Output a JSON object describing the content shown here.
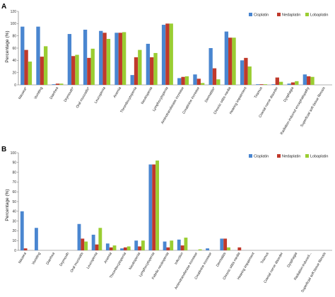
{
  "chart_data": [
    {
      "type": "bar",
      "panel_label": "A",
      "ylabel": "Percentage (%)",
      "ylim": [
        0,
        120
      ],
      "yticks": [
        0,
        20,
        40,
        60,
        80,
        100,
        120
      ],
      "grid": false,
      "legend_position": "top-right",
      "categories": [
        "Nausea*",
        "Vomiting",
        "Diarrhea",
        "Drymouth*",
        "Oral mucositis*",
        "Leucopenia",
        "Anemia",
        "Thrombocytopenia",
        "Neutropenia",
        "Lymphocytopenia",
        "Aminotransferase increase",
        "Creatinine increase",
        "Dermatitis*",
        "Chronic otitis media",
        "Hearing impairment",
        "Trismus",
        "Cranial nerve disorder",
        "Dysphagia",
        "Radiation-induced encephalopathy",
        "Superficial soft tissue fibrosis"
      ],
      "series": [
        {
          "name": "Cisplatin",
          "color": "#4a86d0",
          "values": [
            95,
            95,
            1,
            83,
            90,
            88,
            85,
            16,
            67,
            98,
            11,
            17,
            60,
            87,
            40,
            1,
            1,
            2,
            17,
            0
          ]
        },
        {
          "name": "Nedaplatin",
          "color": "#c0392b",
          "values": [
            57,
            46,
            2,
            47,
            44,
            85,
            85,
            45,
            45,
            100,
            13,
            10,
            27,
            77,
            44,
            1,
            12,
            4,
            14,
            0
          ]
        },
        {
          "name": "Lobaplatin",
          "color": "#9acd32",
          "values": [
            38,
            63,
            2,
            49,
            59,
            75,
            86,
            57,
            52,
            100,
            14,
            3,
            9,
            77,
            30,
            1,
            5,
            6,
            13,
            0
          ]
        }
      ]
    },
    {
      "type": "bar",
      "panel_label": "B",
      "ylabel": "Percentage (%)",
      "ylim": [
        0,
        100
      ],
      "yticks": [
        0,
        10,
        20,
        30,
        40,
        50,
        60,
        70,
        80,
        90,
        100
      ],
      "grid": false,
      "legend_position": "top-right",
      "categories": [
        "Nausea",
        "Vomiting",
        "Diarrhea",
        "Drymouth",
        "Oral mucositis",
        "Leucopenia",
        "Anemia",
        "Thrombocytopenia",
        "Neutropenia",
        "Lymphocytopenia",
        "Febrile neutropenia",
        "Infection",
        "Aminotransferase increase",
        "Creatinine increase",
        "Dermatitis",
        "Chronic otitis media",
        "Hearing impairment",
        "Trismus",
        "Cranial nerve disorder",
        "Dysphagia",
        "Radiation-induced...",
        "Superficial soft tissue fibrosis"
      ],
      "series": [
        {
          "name": "Cisplatin",
          "color": "#4a86d0",
          "values": [
            40,
            23,
            0,
            0,
            27,
            16,
            7,
            2,
            10,
            88,
            9,
            11,
            0,
            2,
            12,
            0,
            0,
            0,
            0,
            0,
            0,
            0
          ]
        },
        {
          "name": "Nedaplatin",
          "color": "#c0392b",
          "values": [
            2,
            0,
            0,
            0,
            12,
            6,
            3,
            3,
            4,
            88,
            3,
            5,
            0,
            0,
            12,
            3,
            0,
            0,
            0,
            0,
            0,
            0
          ]
        },
        {
          "name": "Lobaplatin",
          "color": "#9acd32",
          "values": [
            0,
            0,
            0,
            0,
            9,
            23,
            5,
            4,
            10,
            92,
            10,
            13,
            1,
            0,
            3,
            0,
            0,
            0,
            0,
            0,
            0,
            0
          ]
        }
      ]
    }
  ]
}
